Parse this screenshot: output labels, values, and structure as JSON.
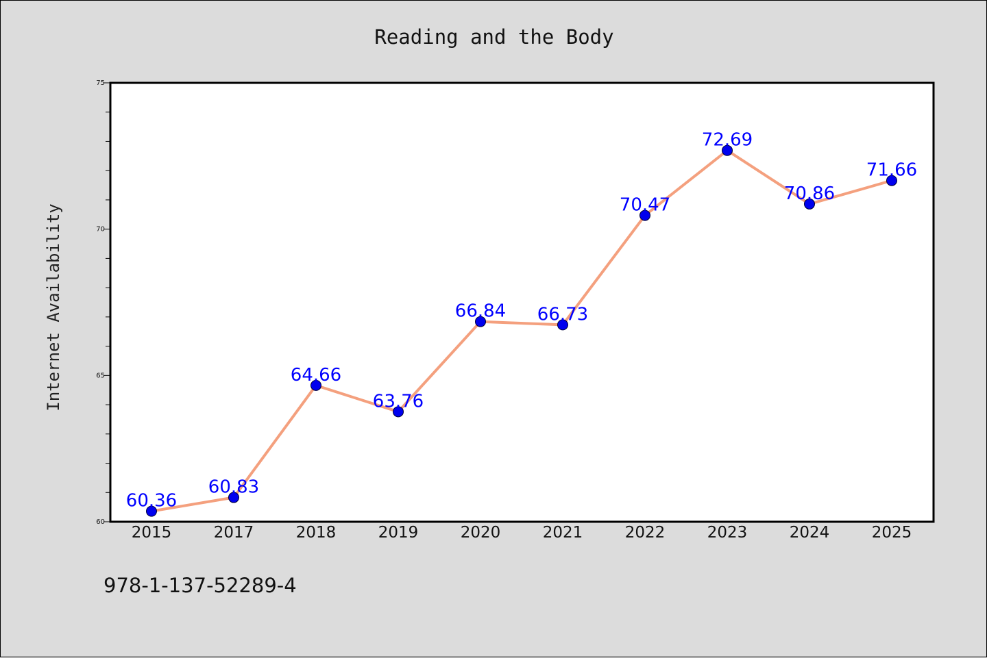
{
  "chart_data": {
    "type": "line",
    "title": "Reading and the Body",
    "ylabel": "Internet Availability",
    "xlabel": "",
    "categories": [
      "2015",
      "2017",
      "2018",
      "2019",
      "2020",
      "2021",
      "2022",
      "2023",
      "2024",
      "2025"
    ],
    "series": [
      {
        "values": [
          60.36,
          60.83,
          64.66,
          63.76,
          66.84,
          66.73,
          70.47,
          72.69,
          70.86,
          71.66
        ]
      }
    ],
    "data_labels": [
      "60.36",
      "60.83",
      "64.66",
      "63.76",
      "66.84",
      "66.73",
      "70.47",
      "72.69",
      "70.86",
      "71.66"
    ],
    "ylim": [
      60,
      75
    ],
    "yticks": [
      60,
      65,
      70,
      75
    ],
    "y_minor_step": 1,
    "grid": false,
    "line_color": "#f4a07e",
    "marker_color": "#0000ee",
    "label_color": "#0000ff"
  },
  "footer": {
    "isbn": "978-1-137-52289-4"
  },
  "colors": {
    "background": "#dcdcdc",
    "plot_area": "#ffffff"
  }
}
